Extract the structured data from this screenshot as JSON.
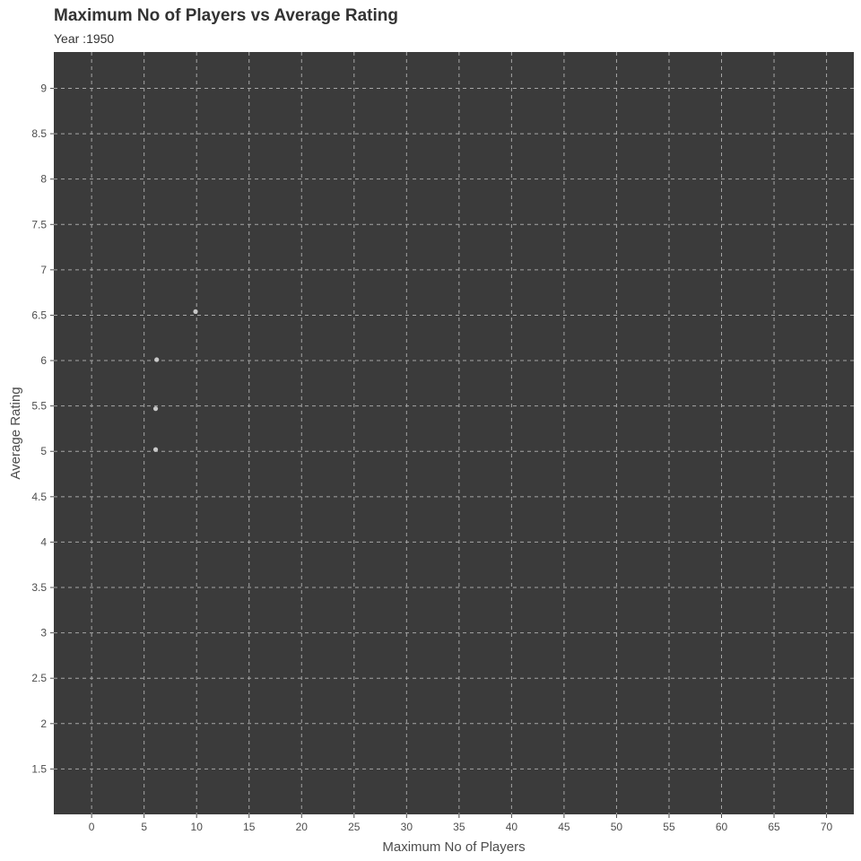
{
  "chart_data": {
    "type": "scatter",
    "title": "Maximum No of Players vs Average Rating",
    "subtitle": "Year :1950",
    "xlabel": "Maximum No of Players",
    "ylabel": "Average Rating",
    "xlim": [
      -3.6,
      72.6
    ],
    "ylim": [
      1.0,
      9.4
    ],
    "x_ticks": [
      0,
      5,
      10,
      15,
      20,
      25,
      30,
      35,
      40,
      45,
      50,
      55,
      60,
      65,
      70
    ],
    "x_tick_labels": [
      "0",
      "5",
      "10",
      "15",
      "20",
      "25",
      "30",
      "35",
      "40",
      "45",
      "50",
      "55",
      "60",
      "65",
      "70"
    ],
    "y_ticks": [
      1.5,
      2,
      2.5,
      3,
      3.5,
      4,
      4.5,
      5,
      5.5,
      6,
      6.5,
      7,
      7.5,
      8,
      8.5,
      9
    ],
    "y_tick_labels": [
      "1.5",
      "2",
      "2.5",
      "3",
      "3.5",
      "4",
      "4.5",
      "5",
      "5.5",
      "6",
      "6.5",
      "7",
      "7.5",
      "8",
      "8.5",
      "9"
    ],
    "grid": true,
    "points": [
      {
        "x": 9.9,
        "y": 6.54
      },
      {
        "x": 6.2,
        "y": 6.01
      },
      {
        "x": 6.1,
        "y": 5.47
      },
      {
        "x": 6.1,
        "y": 5.02
      }
    ]
  },
  "colors": {
    "panel_background": "#3b3b3b",
    "grid": "#a6a6a6",
    "point": "#c8c8c8",
    "text": "#333333",
    "tick_text": "#4d4d4d"
  }
}
